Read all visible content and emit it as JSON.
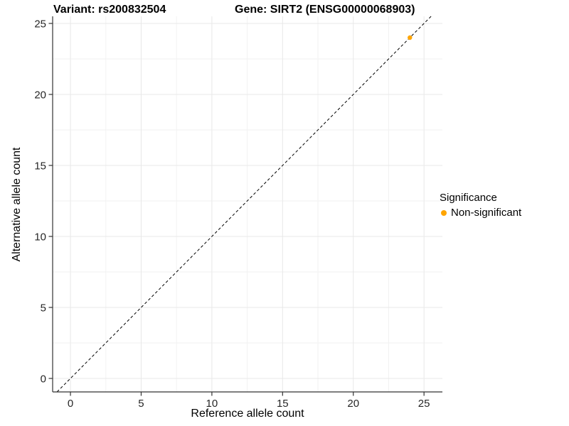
{
  "chart_data": {
    "type": "scatter",
    "titles": {
      "left": "Variant: rs200832504",
      "right": "Gene: SIRT2 (ENSG00000068903)"
    },
    "xlabel": "Reference allele count",
    "ylabel": "Alternative allele count",
    "x_ticks": [
      0,
      5,
      10,
      15,
      20,
      25
    ],
    "y_ticks": [
      0,
      5,
      10,
      15,
      20,
      25
    ],
    "x_minor_ticks": [
      2.5,
      7.5,
      12.5,
      17.5,
      22.5
    ],
    "y_minor_ticks": [
      2.5,
      7.5,
      12.5,
      17.5,
      22.5
    ],
    "xlim": [
      -1.26,
      26.3
    ],
    "ylim": [
      -0.95,
      25.5
    ],
    "grid": "on",
    "series": [
      {
        "name": "Non-significant",
        "color": "#FFA500",
        "points": [
          {
            "x": 24,
            "y": 24
          }
        ]
      }
    ],
    "reference_line": {
      "type": "identity y=x diagonal",
      "linestyle": "dashed",
      "color": "#000000"
    },
    "legend": {
      "title": "Significance",
      "position": "right",
      "items": [
        {
          "label": "Non-significant",
          "color": "#FFA500",
          "marker": "point"
        }
      ]
    },
    "colors": {
      "background": "#ffffff",
      "panel_background": "#ffffff",
      "grid_major": "#e8e8e8",
      "grid_minor": "#f2f2f2",
      "axis": "#333333",
      "tick_label": "#262626",
      "title": "#000000"
    }
  }
}
